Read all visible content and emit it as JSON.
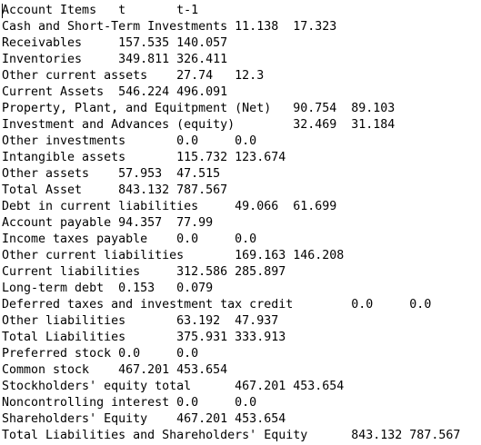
{
  "editor": {
    "lines": [
      "Account Items   t       t-1",
      "Cash and Short-Term Investments 11.138  17.323",
      "Receivables     157.535 140.057",
      "Inventories     349.811 326.411",
      "Other current assets    27.74   12.3",
      "Current Assets  546.224 496.091",
      "Property, Plant, and Equitpment (Net)   90.754  89.103",
      "Investment and Advances (equity)        32.469  31.184",
      "Other investments       0.0     0.0",
      "Intangible assets       115.732 123.674",
      "Other assets    57.953  47.515",
      "Total Asset     843.132 787.567",
      "Debt in current liabilities     49.066  61.699",
      "Account payable 94.357  77.99",
      "Income taxes payable    0.0     0.0",
      "Other current liabilities       169.163 146.208",
      "Current liabilities     312.586 285.897",
      "Long-term debt  0.153   0.079",
      "Deferred taxes and investment tax credit        0.0     0.0",
      "Other liabilities       63.192  47.937",
      "Total Liabilities       375.931 333.913",
      "Preferred stock 0.0     0.0",
      "Common stock    467.201 453.654",
      "Stockholders' equity total      467.201 453.654",
      "Noncontrolling interest 0.0     0.0",
      "Shareholders' Equity    467.201 453.654",
      "Total Liabilities and Shareholders' Equity      843.132 787.567"
    ]
  }
}
